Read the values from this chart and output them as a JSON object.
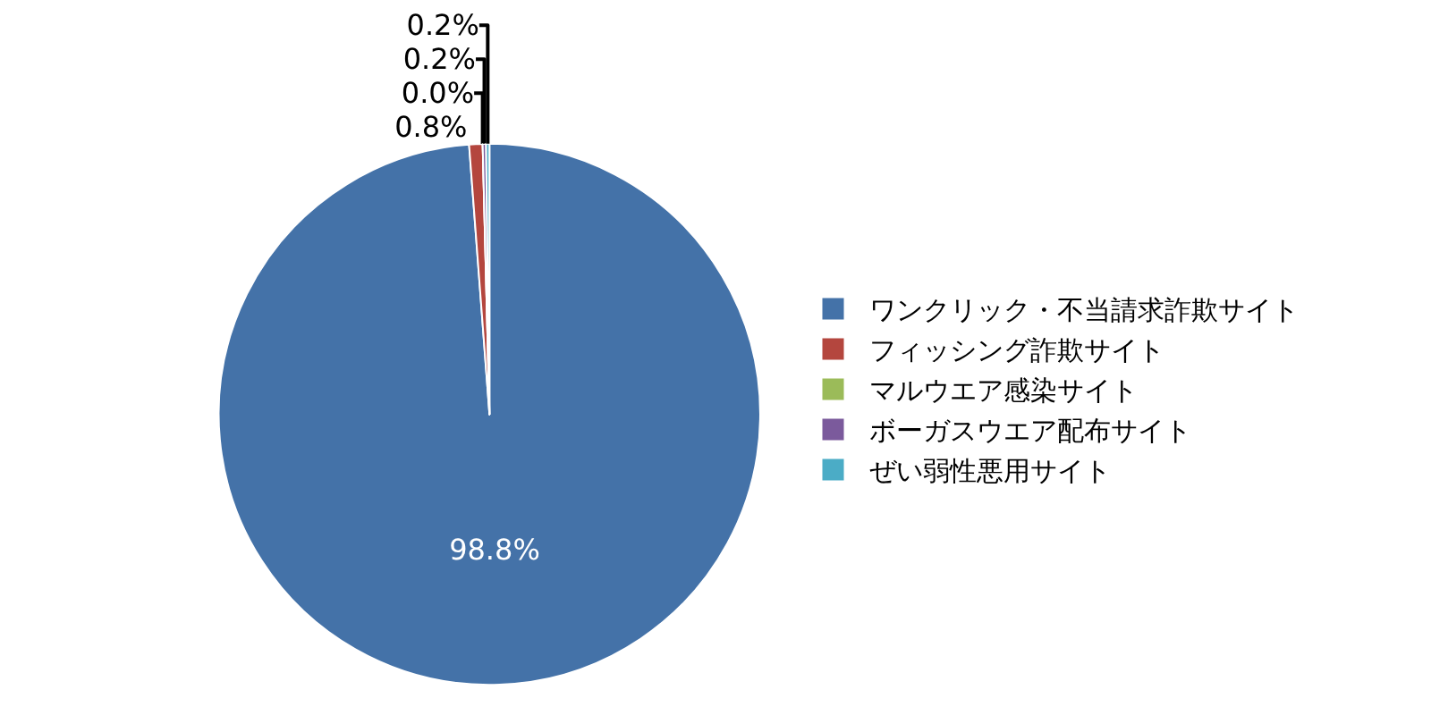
{
  "chart_data": {
    "type": "pie",
    "categories": [
      "ワンクリック・不当請求詐欺サイト",
      "フィッシング詐欺サイト",
      "マルウエア感染サイト",
      "ボーガスウエア配布サイト",
      "ぜい弱性悪用サイト"
    ],
    "values": [
      98.8,
      0.8,
      0.0,
      0.2,
      0.2
    ],
    "colors": [
      "#4472a8",
      "#b4463e",
      "#9bbb59",
      "#7b5a9c",
      "#4bacc6"
    ],
    "value_labels": [
      "98.8%",
      "0.8%",
      "0.0%",
      "0.2%",
      "0.2%"
    ],
    "legend": "right"
  }
}
